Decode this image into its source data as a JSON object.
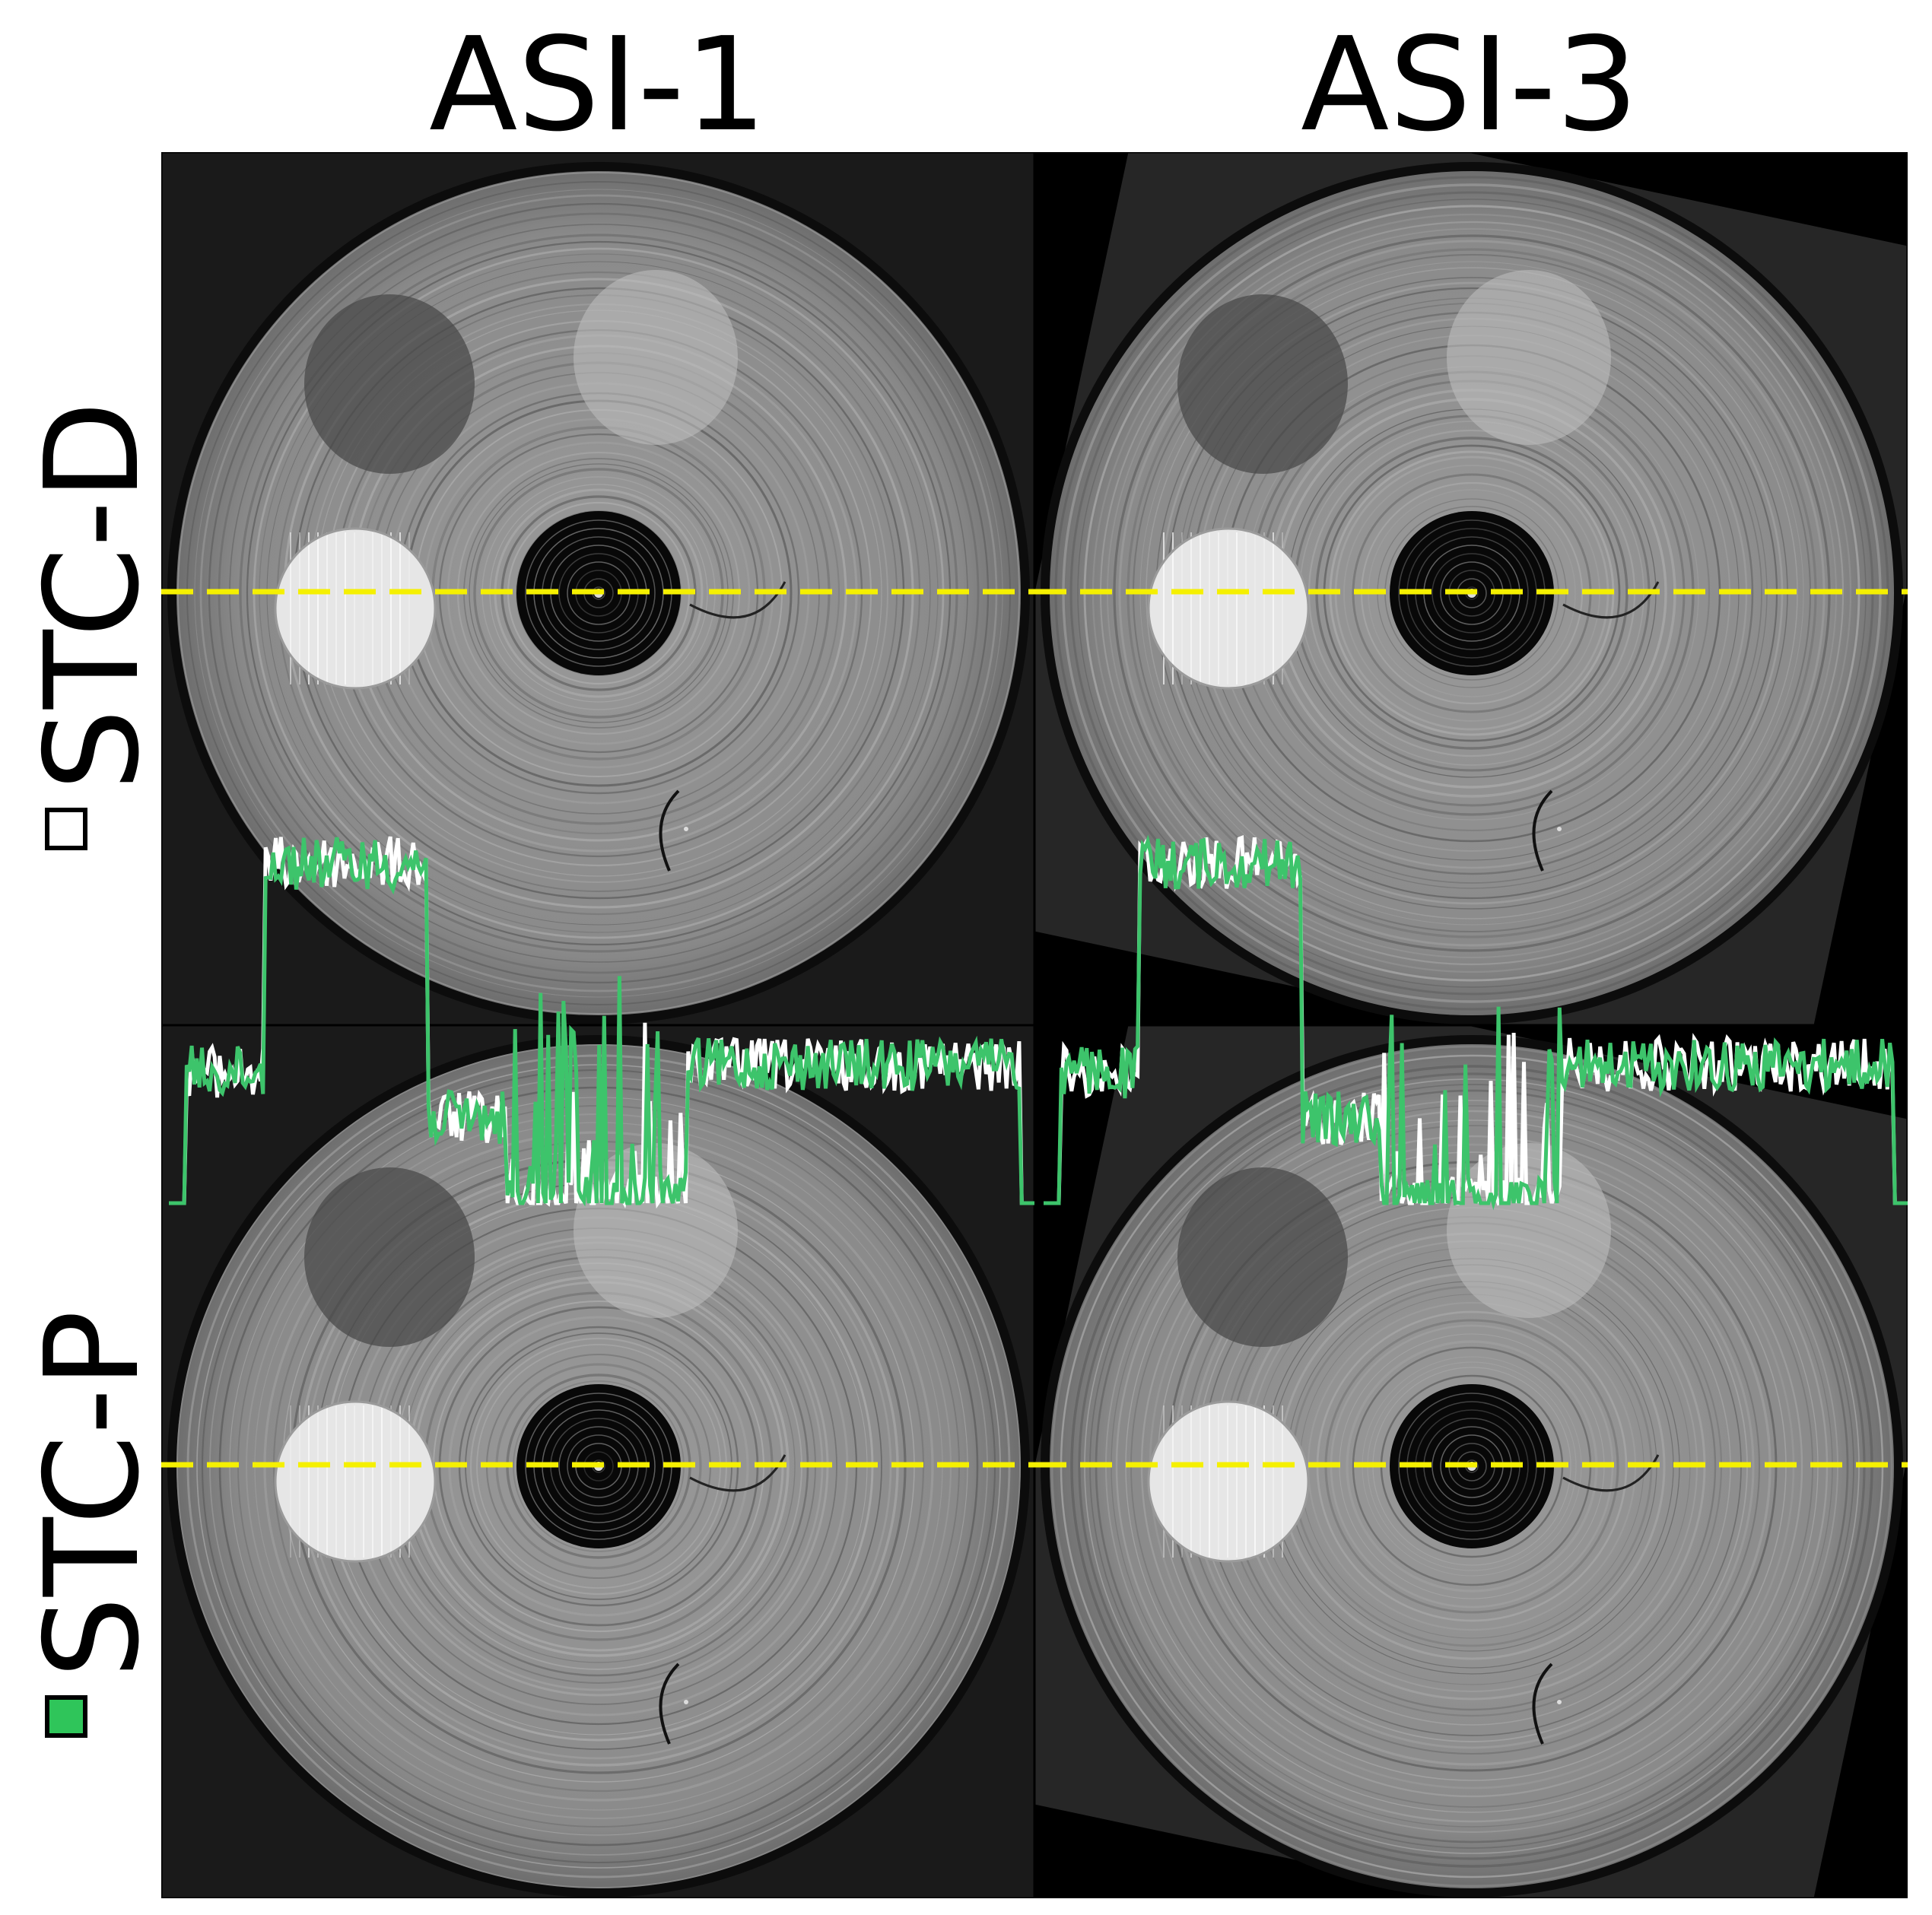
{
  "columns": [
    {
      "id": "asi1",
      "label": "ASI-1"
    },
    {
      "id": "asi3",
      "label": "ASI-3"
    }
  ],
  "rows": [
    {
      "id": "stcd",
      "label": "STC-D",
      "marker_color": "#ffffff",
      "marker_stroke": "#000000"
    },
    {
      "id": "stcp",
      "label": "STC-P",
      "marker_color": "#2fc55a",
      "marker_stroke": "#000000"
    }
  ],
  "colors": {
    "profile_white": "#ffffff",
    "profile_green": "#3dc46b",
    "cut_line": "#f5f000",
    "background": "#000000"
  },
  "icons": [
    "phantom-ct-slice",
    "profile-line"
  ]
}
